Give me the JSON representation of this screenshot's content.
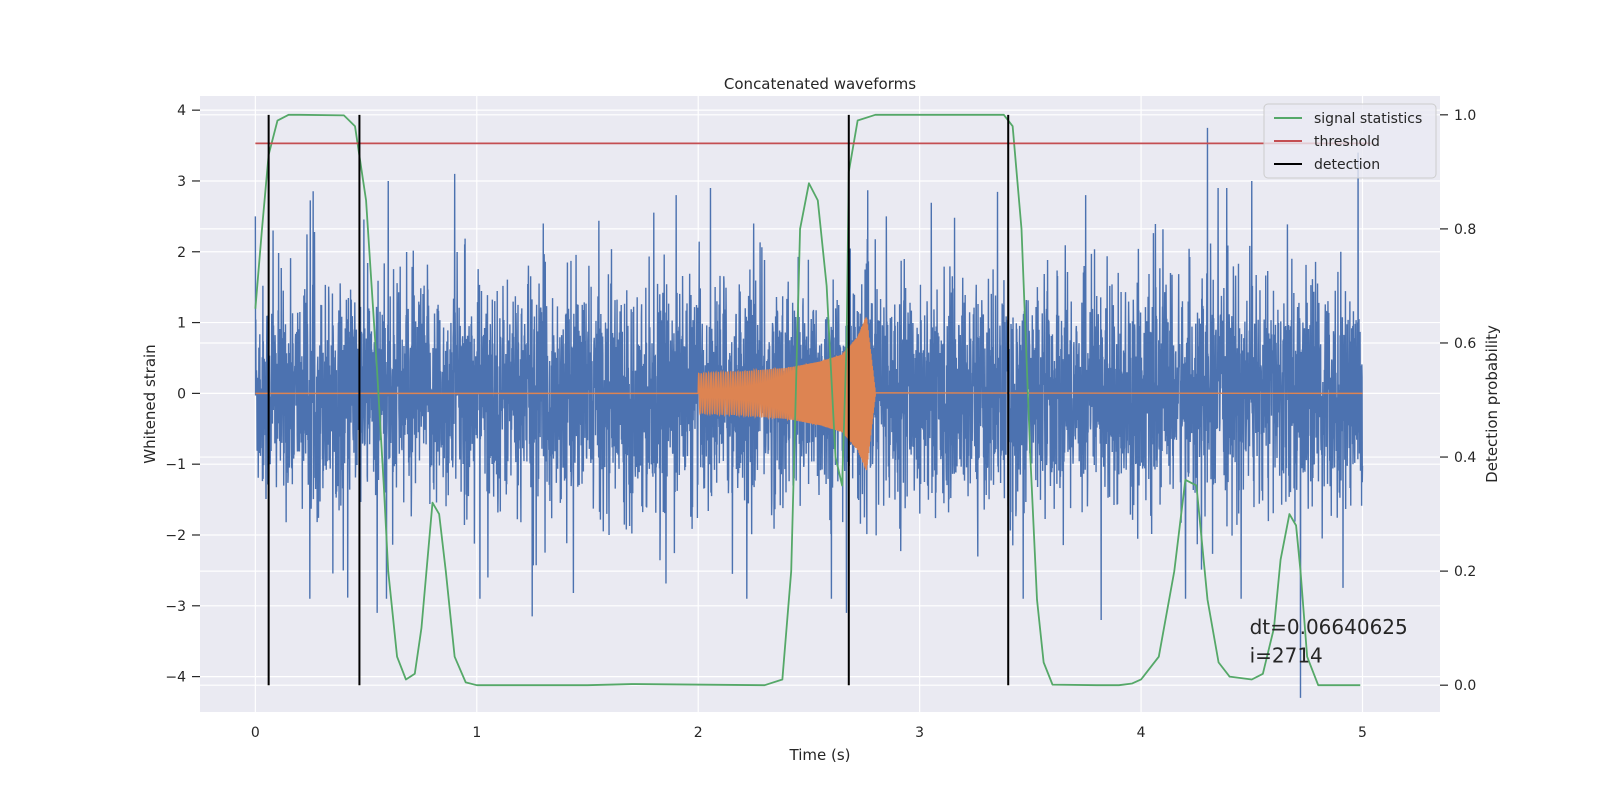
{
  "chart_data": {
    "type": "line",
    "title": "Concatenated waveforms",
    "xlabel": "Time (s)",
    "ylabel": "Whitened strain",
    "y2label": "Detection probability",
    "xlim": [
      -0.25,
      5.35
    ],
    "ylim": [
      -4.5,
      4.2
    ],
    "y2lim": [
      -0.047,
      1.033
    ],
    "xticks": [
      0,
      1,
      2,
      3,
      4,
      5
    ],
    "yticks": [
      -4,
      -3,
      -2,
      -1,
      0,
      1,
      2,
      3,
      4
    ],
    "y2ticks": [
      0.0,
      0.2,
      0.4,
      0.6,
      0.8,
      1.0
    ],
    "grid": true,
    "legend_position": "top-right",
    "legend": [
      {
        "name": "signal statistics",
        "color": "#55a868"
      },
      {
        "name": "threshold",
        "color": "#c44e52"
      },
      {
        "name": "detection",
        "color": "#000000"
      }
    ],
    "series": [
      {
        "name": "strain",
        "color": "#4c72b0",
        "axis": "left",
        "kind": "noise",
        "x_range": [
          0,
          5
        ],
        "typical_amplitude": 1.0,
        "peak_points": [
          [
            0.0,
            2.5
          ],
          [
            0.08,
            2.3
          ],
          [
            0.47,
            2.55
          ],
          [
            0.55,
            -3.1
          ],
          [
            0.6,
            3.0
          ],
          [
            0.9,
            3.1
          ],
          [
            1.05,
            -2.6
          ],
          [
            1.3,
            2.4
          ],
          [
            1.25,
            -3.15
          ],
          [
            1.9,
            2.8
          ],
          [
            2.25,
            2.4
          ],
          [
            2.67,
            -3.1
          ],
          [
            2.85,
            2.5
          ],
          [
            3.75,
            2.8
          ],
          [
            3.82,
            -3.2
          ],
          [
            4.3,
            3.75
          ],
          [
            4.5,
            3.0
          ],
          [
            4.72,
            -4.3
          ],
          [
            4.98,
            3.4
          ]
        ]
      },
      {
        "name": "waveform",
        "color": "#dd8452",
        "axis": "left",
        "kind": "chirp",
        "x": [
          0,
          2.0,
          2.2,
          2.4,
          2.55,
          2.65,
          2.72,
          2.76,
          2.8,
          5.0
        ],
        "envelope": [
          0,
          0.28,
          0.31,
          0.36,
          0.45,
          0.55,
          0.8,
          1.1,
          0.02,
          0
        ]
      },
      {
        "name": "signal statistics",
        "color": "#55a868",
        "axis": "right",
        "x": [
          0.0,
          0.03,
          0.06,
          0.1,
          0.15,
          0.2,
          0.4,
          0.45,
          0.5,
          0.55,
          0.58,
          0.6,
          0.64,
          0.68,
          0.72,
          0.75,
          0.8,
          0.83,
          0.86,
          0.9,
          0.95,
          1.0,
          1.5,
          1.7,
          2.3,
          2.38,
          2.42,
          2.46,
          2.5,
          2.54,
          2.58,
          2.62,
          2.65,
          2.67,
          2.68,
          2.72,
          2.8,
          3.0,
          3.38,
          3.42,
          3.46,
          3.5,
          3.53,
          3.56,
          3.6,
          3.8,
          3.9,
          3.96,
          4.0,
          4.08,
          4.15,
          4.2,
          4.25,
          4.3,
          4.35,
          4.4,
          4.5,
          4.55,
          4.6,
          4.63,
          4.67,
          4.7,
          4.72,
          4.75,
          4.8,
          4.9,
          4.99
        ],
        "values": [
          0.66,
          0.8,
          0.93,
          0.99,
          1.0,
          1.0,
          0.999,
          0.98,
          0.85,
          0.55,
          0.35,
          0.2,
          0.05,
          0.01,
          0.02,
          0.1,
          0.32,
          0.3,
          0.2,
          0.05,
          0.005,
          0.0,
          0.0,
          0.002,
          0.0,
          0.01,
          0.2,
          0.8,
          0.88,
          0.85,
          0.7,
          0.4,
          0.35,
          0.6,
          0.9,
          0.99,
          1.0,
          1.0,
          1.0,
          0.98,
          0.8,
          0.4,
          0.15,
          0.04,
          0.001,
          0.0,
          0.0,
          0.003,
          0.01,
          0.05,
          0.2,
          0.36,
          0.35,
          0.15,
          0.04,
          0.015,
          0.01,
          0.02,
          0.1,
          0.22,
          0.3,
          0.28,
          0.2,
          0.05,
          0.0,
          0.0,
          0.0
        ]
      },
      {
        "name": "threshold",
        "color": "#c44e52",
        "axis": "right",
        "x": [
          0,
          5.05
        ],
        "values": [
          0.95,
          0.95
        ]
      }
    ],
    "detections": [
      0.06,
      0.47,
      2.68,
      3.4
    ],
    "annotations": [
      {
        "text": "dt=0.06640625",
        "x": 4.49,
        "y": -3.4
      },
      {
        "text": " i=2714",
        "x": 4.49,
        "y": -3.8
      }
    ]
  }
}
